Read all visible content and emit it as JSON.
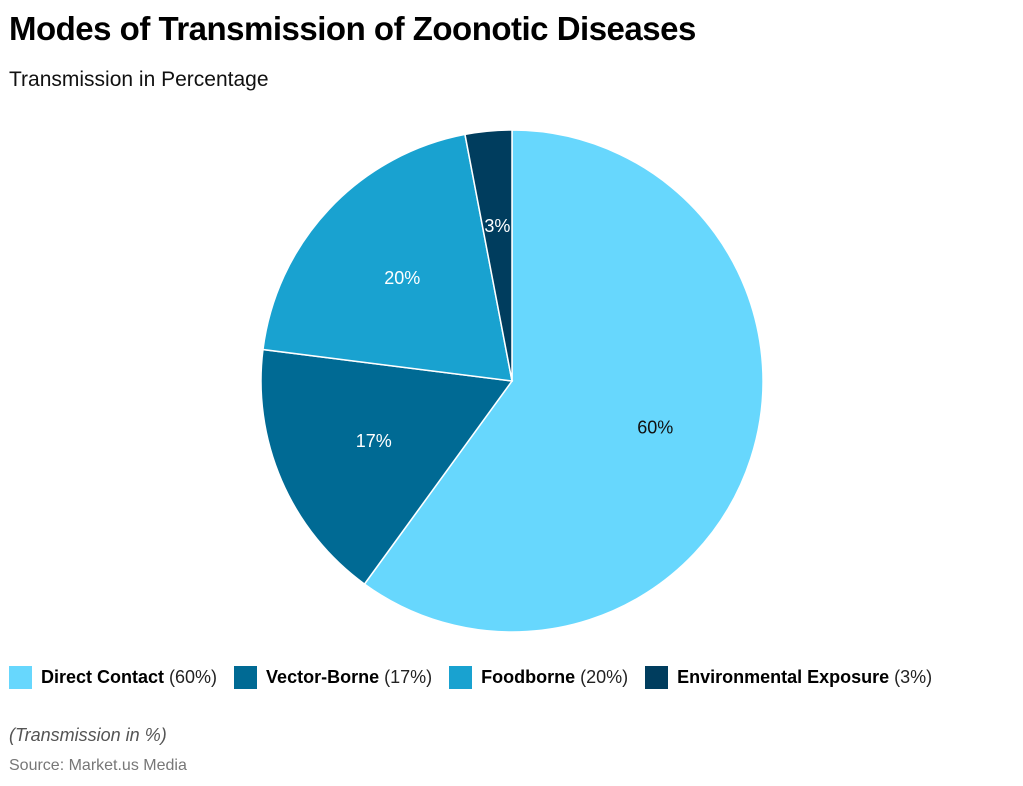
{
  "chart_data": {
    "type": "pie",
    "title": "Modes of Transmission of Zoonotic Diseases",
    "subtitle": "Transmission in Percentage",
    "categories": [
      "Direct Contact",
      "Vector-Borne",
      "Foodborne",
      "Environmental Exposure"
    ],
    "values": [
      60,
      17,
      20,
      3
    ],
    "labels": [
      "60%",
      "17%",
      "20%",
      "3%"
    ],
    "legend_labels": [
      "(60%)",
      "(17%)",
      "(20%)",
      "(3%)"
    ],
    "colors": [
      "#67d7fd",
      "#006a94",
      "#19a2d0",
      "#003d5e"
    ],
    "legend_position": "bottom",
    "note": "(Transmission in %)",
    "source": "Source: Market.us Media"
  }
}
